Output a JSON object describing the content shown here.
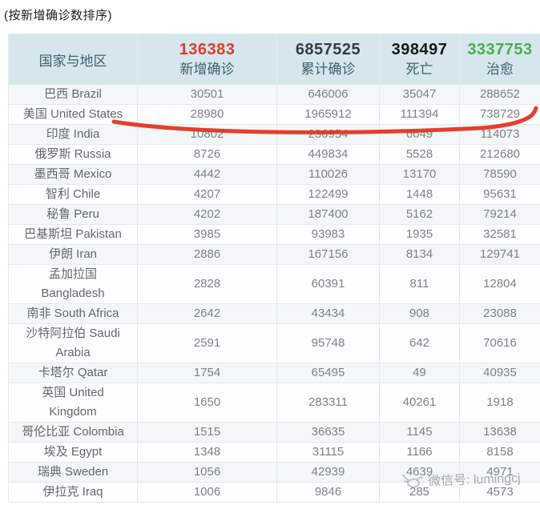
{
  "page_title": "(按新增确诊数排序)",
  "chart_data": {
    "type": "table",
    "title": "(按新增确诊数排序)",
    "columns": [
      {
        "key": "country",
        "label": "国家与地区",
        "total": "",
        "color": "#42606b"
      },
      {
        "key": "new_confirmed",
        "label": "新增确诊",
        "total": 136383,
        "color": "#e8392a"
      },
      {
        "key": "cumulative_confirmed",
        "label": "累计确诊",
        "total": 6857525,
        "color": "#323e46"
      },
      {
        "key": "deaths",
        "label": "死亡",
        "total": 398497,
        "color": "#15191b"
      },
      {
        "key": "cured",
        "label": "治愈",
        "total": 3337753,
        "color": "#4cad50"
      }
    ],
    "rows": [
      {
        "country": "巴西 Brazil",
        "new_confirmed": 30501,
        "cumulative_confirmed": 646006,
        "deaths": 35047,
        "cured": 288652
      },
      {
        "country": "美国 United States",
        "new_confirmed": 28980,
        "cumulative_confirmed": 1965912,
        "deaths": 111394,
        "cured": 738729
      },
      {
        "country": "印度 India",
        "new_confirmed": 10802,
        "cumulative_confirmed": 236954,
        "deaths": 6649,
        "cured": 114073
      },
      {
        "country": "俄罗斯 Russia",
        "new_confirmed": 8726,
        "cumulative_confirmed": 449834,
        "deaths": 5528,
        "cured": 212680
      },
      {
        "country": "墨西哥 Mexico",
        "new_confirmed": 4442,
        "cumulative_confirmed": 110026,
        "deaths": 13170,
        "cured": 78590
      },
      {
        "country": "智利 Chile",
        "new_confirmed": 4207,
        "cumulative_confirmed": 122499,
        "deaths": 1448,
        "cured": 95631
      },
      {
        "country": "秘鲁 Peru",
        "new_confirmed": 4202,
        "cumulative_confirmed": 187400,
        "deaths": 5162,
        "cured": 79214
      },
      {
        "country": "巴基斯坦 Pakistan",
        "new_confirmed": 3985,
        "cumulative_confirmed": 93983,
        "deaths": 1935,
        "cured": 32581
      },
      {
        "country": "伊朗 Iran",
        "new_confirmed": 2886,
        "cumulative_confirmed": 167156,
        "deaths": 8134,
        "cured": 129741
      },
      {
        "country": "孟加拉国\nBangladesh",
        "new_confirmed": 2828,
        "cumulative_confirmed": 60391,
        "deaths": 811,
        "cured": 12804
      },
      {
        "country": "南非 South Africa",
        "new_confirmed": 2642,
        "cumulative_confirmed": 43434,
        "deaths": 908,
        "cured": 23088
      },
      {
        "country": "沙特阿拉伯 Saudi\nArabia",
        "new_confirmed": 2591,
        "cumulative_confirmed": 95748,
        "deaths": 642,
        "cured": 70616
      },
      {
        "country": "卡塔尔 Qatar",
        "new_confirmed": 1754,
        "cumulative_confirmed": 65495,
        "deaths": 49,
        "cured": 40935
      },
      {
        "country": "英国 United\nKingdom",
        "new_confirmed": 1650,
        "cumulative_confirmed": 283311,
        "deaths": 40261,
        "cured": 1918
      },
      {
        "country": "哥伦比亚 Colombia",
        "new_confirmed": 1515,
        "cumulative_confirmed": 36635,
        "deaths": 1145,
        "cured": 13638
      },
      {
        "country": "埃及 Egypt",
        "new_confirmed": 1348,
        "cumulative_confirmed": 31115,
        "deaths": 1166,
        "cured": 8158
      },
      {
        "country": "瑞典 Sweden",
        "new_confirmed": 1056,
        "cumulative_confirmed": 42939,
        "deaths": 4639,
        "cured": 4971
      },
      {
        "country": "伊拉克 Iraq",
        "new_confirmed": 1006,
        "cumulative_confirmed": 9846,
        "deaths": 285,
        "cured": 4573
      }
    ]
  },
  "annotation": {
    "shape": "hand-drawn-underline",
    "color": "#e5341f",
    "highlights_row": "美国 United States",
    "row_index": 1
  },
  "watermark": {
    "text": "微信号: lumingcj"
  }
}
